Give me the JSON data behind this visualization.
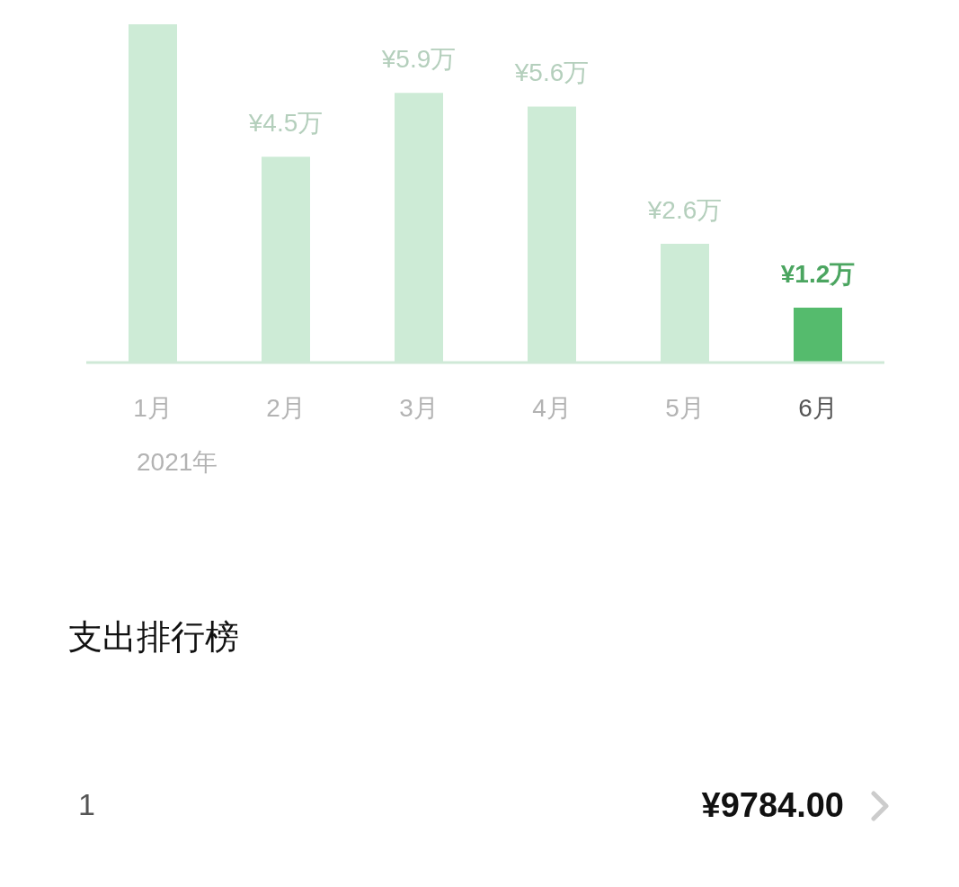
{
  "chart_data": {
    "type": "bar",
    "categories": [
      "1月",
      "2月",
      "3月",
      "4月",
      "5月",
      "6月"
    ],
    "values": [
      7.4,
      4.5,
      5.9,
      5.6,
      2.6,
      1.2
    ],
    "colors": [
      "#cdebd6",
      "#cdebd6",
      "#cdebd6",
      "#cdebd6",
      "#cdebd6",
      "#55bb6d"
    ],
    "value_labels": [
      null,
      "¥4.5万",
      "¥5.9万",
      "¥5.6万",
      "¥2.6万",
      "¥1.2万"
    ],
    "annotations": [
      "2021年",
      "支出排行榜",
      "1",
      "¥9784.00"
    ]
  }
}
